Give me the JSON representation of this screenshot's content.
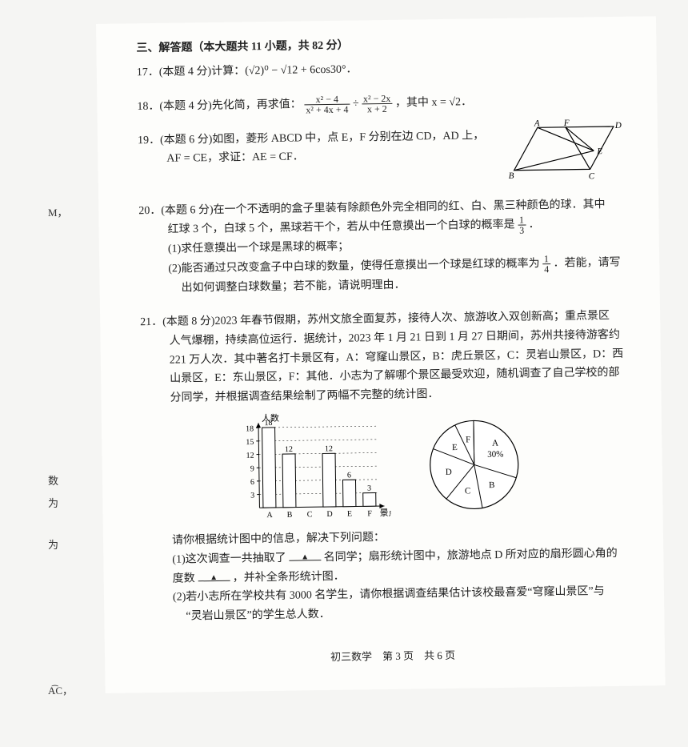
{
  "section_title": "三、解答题（本大题共 11 小题，共 82 分）",
  "q17": {
    "text": "17．(本题 4 分)计算：(√2)⁰ − √12 + 6cos30°．"
  },
  "q18": {
    "prefix": "18．(本题 4 分)先化简，再求值：",
    "frac1_top": "x² − 4",
    "frac1_bot": "x² + 4x + 4",
    "div": " ÷ ",
    "frac2_top": "x² − 2x",
    "frac2_bot": "x + 2",
    "suffix": "，其中 x = √2．"
  },
  "q19": {
    "line1": "19．(本题 6 分)如图，菱形 ABCD 中，点 E，F 分别在边 CD，AD 上，",
    "line2": "AF = CE，求证：AE = CF．",
    "labels": {
      "A": "A",
      "B": "B",
      "C": "C",
      "D": "D",
      "E": "E",
      "F": "F"
    }
  },
  "q20": {
    "line1": "20．(本题 6 分)在一个不透明的盒子里装有除颜色外完全相同的红、白、黑三种颜色的球．其中",
    "line2_a": "红球 3 个，白球 5 个，黑球若干个，若从中任意摸出一个白球的概率是",
    "frac_top": "1",
    "frac_bot": "3",
    "line2_b": "．",
    "sub1": "(1)求任意摸出一个球是黑球的概率；",
    "sub2a": "(2)能否通过只改变盒子中白球的数量，使得任意摸出一个球是红球的概率为",
    "sub2_frac_top": "1",
    "sub2_frac_bot": "4",
    "sub2b": "．若能，请写",
    "sub2c": "出如何调整白球数量；若不能，请说明理由．"
  },
  "q21": {
    "line1": "21．(本题 8 分)2023 年春节假期，苏州文旅全面复苏，接待人次、旅游收入双创新高；重点景区",
    "line2": "人气爆棚，持续高位运行．据统计，2023 年 1 月 21 日到 1 月 27 日期间，苏州共接待游客约",
    "line3": "221 万人次．其中著名打卡景区有，A：穹窿山景区，B：虎丘景区，C：灵岩山景区，D：西",
    "line4": "山景区，E：东山景区，F：其他．小志为了解哪个景区最受欢迎，随机调查了自己学校的部",
    "line5": "分同学，并根据调查结果绘制了两幅不完整的统计图．",
    "bar": {
      "ylabel": "人数",
      "xlabel": "景点",
      "yticks": [
        3,
        6,
        9,
        12,
        15,
        18
      ],
      "cats": [
        "A",
        "B",
        "C",
        "D",
        "E",
        "F"
      ],
      "vals": [
        18,
        12,
        null,
        12,
        6,
        3
      ],
      "shown_labels": {
        "A": "18",
        "B": "12",
        "D": "12",
        "E": "6",
        "F": "3"
      },
      "bar_fill": "#ffffff",
      "bar_stroke": "#000000",
      "axis_color": "#000000"
    },
    "pie": {
      "labels": [
        "A",
        "B",
        "C",
        "D",
        "E",
        "F"
      ],
      "A_pct_label": "A\n30%",
      "stroke": "#000000",
      "fill": "#ffffff"
    },
    "prompt": "请你根据统计图中的信息，解决下列问题：",
    "sub1a": "(1)这次调查一共抽取了",
    "sub1b": "名同学；扇形统计图中，旅游地点 D 所对应的扇形圆心角的",
    "sub1c": "度数",
    "sub1d": "，并补全条形统计图．",
    "sub2a": "(2)若小志所在学校共有 3000 名学生，请你根据调查结果估计该校最喜爱“穹窿山景区”与",
    "sub2b": "“灵岩山景区”的学生总人数．"
  },
  "margins": {
    "m1": "M，",
    "m2": "数",
    "m3": "为",
    "m4": "为",
    "m5": "A͡C，"
  },
  "footer": "初三数学　第 3 页　共 6 页"
}
